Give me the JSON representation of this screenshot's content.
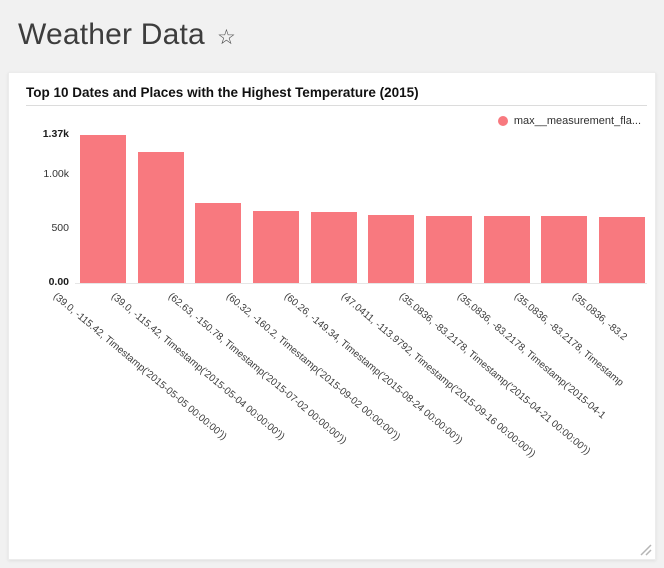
{
  "header": {
    "title": "Weather Data",
    "star_icon": "☆"
  },
  "chart_data": {
    "type": "bar",
    "title": "Top 10 Dates and Places with the Highest Temperature (2015)",
    "legend_label": "max__measurement_fla...",
    "legend_position": "top-right",
    "grid": false,
    "categories": [
      "(39.0, -115.42, Timestamp('2015-05-05 00:00:00'))",
      "(39.0, -115.42, Timestamp('2015-05-04 00:00:00'))",
      "(62.63, -150.78, Timestamp('2015-07-02 00:00:00'))",
      "(60.32, -160.2, Timestamp('2015-09-02 00:00:00'))",
      "(60.26, -149.34, Timestamp('2015-08-24 00:00:00'))",
      "(47.0411, -113.9792, Timestamp('2015-09-16 00:00:00'))",
      "(35.0836, -83.2178, Timestamp('2015-04-21 00:00:00'))",
      "(35.0836, -83.2178, Timestamp('2015-04-1",
      "(35.0836, -83.2178, Timestamp",
      "(35.0836, -83.2"
    ],
    "values": [
      1370,
      1215,
      740,
      665,
      655,
      625,
      620,
      620,
      620,
      615
    ],
    "xlabel": "",
    "ylabel": "",
    "ylim": [
      0,
      1370
    ],
    "yticks": [
      {
        "label": "0.00",
        "value": 0,
        "bold": true
      },
      {
        "label": "500",
        "value": 500,
        "bold": false
      },
      {
        "label": "1.00k",
        "value": 1000,
        "bold": false
      },
      {
        "label": "1.37k",
        "value": 1370,
        "bold": true
      }
    ],
    "bar_color": "#f8797f"
  }
}
